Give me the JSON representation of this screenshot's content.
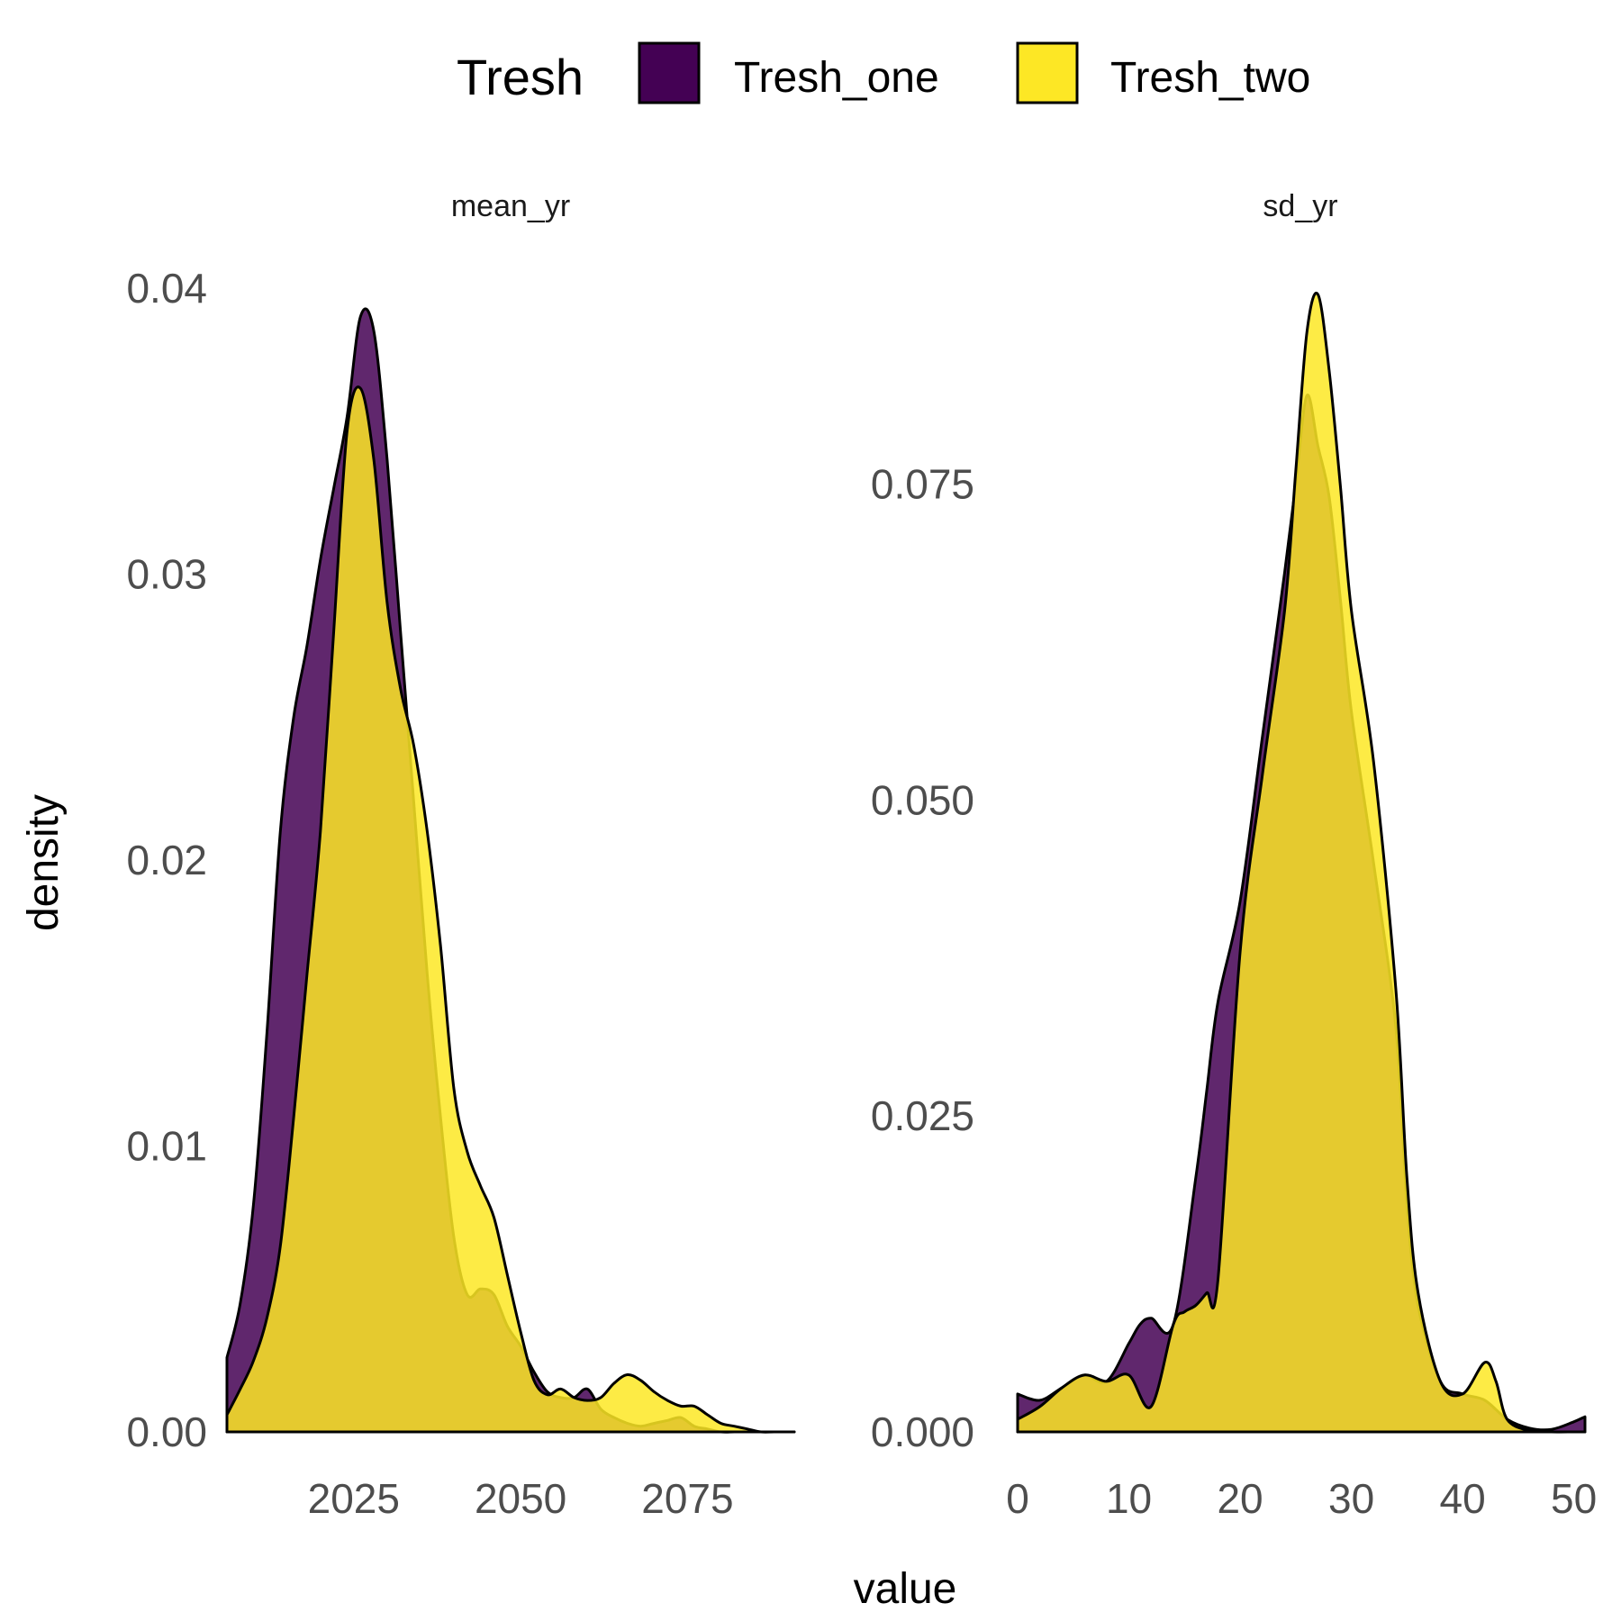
{
  "chart_data": {
    "type": "area",
    "subtype": "density",
    "xlabel": "value",
    "ylabel": "density",
    "legend": {
      "title": "Tresh",
      "position": "top",
      "entries": [
        {
          "name": "Tresh_one",
          "color": "#440154"
        },
        {
          "name": "Tresh_two",
          "color": "#FDE725"
        }
      ]
    },
    "fill_opacity": 0.85,
    "grid": false,
    "facets": [
      {
        "name": "mean_yr",
        "xlim": [
          2006,
          2091
        ],
        "ylim": [
          0,
          0.04
        ],
        "xticks": [
          2025,
          2050,
          2075
        ],
        "xtick_labels": [
          "2025",
          "2050",
          "2075"
        ],
        "yticks": [
          0,
          0.01,
          0.02,
          0.03,
          0.04
        ],
        "ytick_labels": [
          "0.00",
          "0.01",
          "0.02",
          "0.03",
          "0.04"
        ],
        "series": [
          {
            "name": "Tresh_one",
            "x": [
              2006,
              2008,
              2010,
              2012,
              2014,
              2016,
              2018,
              2020,
              2022,
              2024,
              2026,
              2028,
              2030,
              2032,
              2034,
              2036,
              2038,
              2040,
              2042,
              2044,
              2046,
              2048,
              2050,
              2052,
              2054,
              2056,
              2058,
              2060,
              2062,
              2064,
              2066,
              2068,
              2070,
              2072,
              2074,
              2076,
              2078,
              2080,
              2082,
              2084,
              2086,
              2088,
              2091
            ],
            "y": [
              0.0026,
              0.0045,
              0.008,
              0.014,
              0.021,
              0.025,
              0.0275,
              0.0305,
              0.033,
              0.0355,
              0.039,
              0.0385,
              0.034,
              0.028,
              0.022,
              0.016,
              0.011,
              0.0068,
              0.0048,
              0.005,
              0.0048,
              0.0037,
              0.003,
              0.0021,
              0.0014,
              0.0012,
              0.0012,
              0.0015,
              0.0008,
              0.0005,
              0.0003,
              0.0002,
              0.0003,
              0.0004,
              0.0005,
              0.0002,
              0.0001,
              0,
              0,
              0,
              0,
              0,
              0
            ]
          },
          {
            "name": "Tresh_two",
            "x": [
              2006,
              2008,
              2010,
              2012,
              2014,
              2016,
              2018,
              2020,
              2022,
              2024,
              2026,
              2028,
              2030,
              2032,
              2034,
              2036,
              2038,
              2040,
              2042,
              2044,
              2046,
              2048,
              2050,
              2052,
              2054,
              2056,
              2058,
              2060,
              2062,
              2064,
              2066,
              2068,
              2070,
              2072,
              2074,
              2076,
              2078,
              2080,
              2082,
              2084,
              2086,
              2088,
              2091
            ],
            "y": [
              0.0006,
              0.0015,
              0.0025,
              0.004,
              0.0065,
              0.011,
              0.016,
              0.021,
              0.028,
              0.035,
              0.0365,
              0.034,
              0.029,
              0.026,
              0.024,
              0.021,
              0.017,
              0.012,
              0.0098,
              0.0086,
              0.0075,
              0.0055,
              0.0035,
              0.0018,
              0.0013,
              0.0015,
              0.0012,
              0.0011,
              0.0012,
              0.0017,
              0.002,
              0.0018,
              0.0014,
              0.0011,
              0.0009,
              0.0009,
              0.0006,
              0.0003,
              0.0002,
              0.0001,
              0,
              0,
              0
            ]
          }
        ]
      },
      {
        "name": "sd_yr",
        "xlim": [
          0,
          51
        ],
        "ylim": [
          0,
          0.0905
        ],
        "xticks": [
          0,
          10,
          20,
          30,
          40,
          50
        ],
        "xtick_labels": [
          "0",
          "10",
          "20",
          "30",
          "40",
          "50"
        ],
        "yticks": [
          0,
          0.025,
          0.05,
          0.075
        ],
        "ytick_labels": [
          "0.000",
          "0.025",
          "0.050",
          "0.075"
        ],
        "series": [
          {
            "name": "Tresh_one",
            "x": [
              0,
              2,
              4,
              6,
              8,
              10,
              11,
              12,
              14,
              16,
              17,
              18,
              20,
              22,
              24,
              25,
              26,
              27,
              28,
              29,
              30,
              32,
              34,
              35,
              36,
              38,
              40,
              42,
              44,
              46,
              48,
              50,
              51
            ],
            "y": [
              0.003,
              0.0025,
              0.0035,
              0.0045,
              0.004,
              0.007,
              0.0085,
              0.009,
              0.0085,
              0.02,
              0.027,
              0.034,
              0.042,
              0.055,
              0.068,
              0.075,
              0.082,
              0.078,
              0.074,
              0.066,
              0.057,
              0.045,
              0.032,
              0.018,
              0.01,
              0.004,
              0.003,
              0.0025,
              0.001,
              0.0003,
              0.0002,
              0.0008,
              0.0012
            ]
          },
          {
            "name": "Tresh_two",
            "x": [
              0,
              2,
              4,
              6,
              8,
              10,
              12,
              14,
              15,
              16,
              17,
              18,
              20,
              22,
              24,
              25,
              26,
              27,
              28,
              29,
              30,
              32,
              34,
              35,
              36,
              38,
              40,
              42,
              43,
              44,
              46,
              48,
              50,
              51
            ],
            "y": [
              0.001,
              0.002,
              0.0035,
              0.0045,
              0.004,
              0.0045,
              0.002,
              0.0085,
              0.0095,
              0.01,
              0.011,
              0.012,
              0.038,
              0.052,
              0.065,
              0.076,
              0.087,
              0.09,
              0.084,
              0.075,
              0.065,
              0.053,
              0.035,
              0.02,
              0.011,
              0.004,
              0.003,
              0.0055,
              0.004,
              0.001,
              0.0001,
              0,
              0,
              0
            ]
          }
        ]
      }
    ]
  }
}
